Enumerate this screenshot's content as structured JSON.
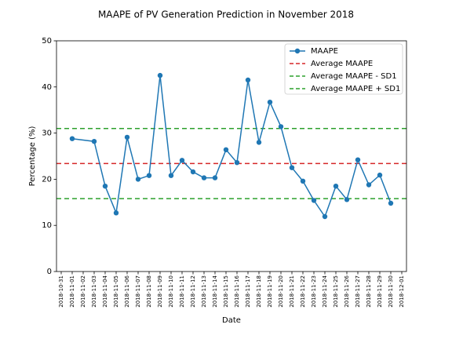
{
  "chart_data": {
    "type": "line",
    "title": "MAAPE of PV Generation Prediction in November 2018",
    "xlabel": "Date",
    "ylabel": "Percentage (%)",
    "ylim": [
      0,
      50
    ],
    "yticks": [
      0,
      10,
      20,
      30,
      40,
      50
    ],
    "xlim": [
      "2018-10-31",
      "2018-12-01"
    ],
    "xticks": [
      "2018-10-31",
      "2018-11-01",
      "2018-11-02",
      "2018-11-03",
      "2018-11-04",
      "2018-11-05",
      "2018-11-06",
      "2018-11-07",
      "2018-11-08",
      "2018-11-09",
      "2018-11-10",
      "2018-11-11",
      "2018-11-12",
      "2018-11-13",
      "2018-11-14",
      "2018-11-15",
      "2018-11-16",
      "2018-11-17",
      "2018-11-18",
      "2018-11-19",
      "2018-11-20",
      "2018-11-21",
      "2018-11-22",
      "2018-11-23",
      "2018-11-24",
      "2018-11-25",
      "2018-11-26",
      "2018-11-27",
      "2018-11-28",
      "2018-11-29",
      "2018-11-30",
      "2018-12-01"
    ],
    "grid": false,
    "legend_position": "top-right",
    "series": [
      {
        "name": "MAAPE",
        "kind": "line-markers",
        "color": "#1f77b4",
        "x": [
          "2018-11-01",
          "2018-11-03",
          "2018-11-04",
          "2018-11-05",
          "2018-11-06",
          "2018-11-07",
          "2018-11-08",
          "2018-11-09",
          "2018-11-10",
          "2018-11-11",
          "2018-11-12",
          "2018-11-13",
          "2018-11-14",
          "2018-11-15",
          "2018-11-16",
          "2018-11-17",
          "2018-11-18",
          "2018-11-19",
          "2018-11-20",
          "2018-11-21",
          "2018-11-22",
          "2018-11-23",
          "2018-11-24",
          "2018-11-25",
          "2018-11-26",
          "2018-11-27",
          "2018-11-28",
          "2018-11-29",
          "2018-11-30"
        ],
        "values": [
          28.8,
          28.2,
          18.5,
          12.7,
          29.1,
          20.0,
          20.8,
          42.5,
          20.8,
          24.1,
          21.6,
          20.3,
          20.3,
          26.4,
          23.6,
          41.5,
          28.0,
          36.7,
          31.4,
          22.5,
          19.6,
          15.4,
          11.9,
          18.5,
          15.6,
          24.2,
          18.8,
          20.9,
          14.8
        ]
      },
      {
        "name": "Average MAAPE",
        "kind": "hline",
        "color": "#d62728",
        "value": 23.4
      },
      {
        "name": "Average MAAPE - SD1",
        "kind": "hline",
        "color": "#2ca02c",
        "value": 15.8
      },
      {
        "name": "Average MAAPE + SD1",
        "kind": "hline",
        "color": "#2ca02c",
        "value": 31.0
      }
    ]
  }
}
